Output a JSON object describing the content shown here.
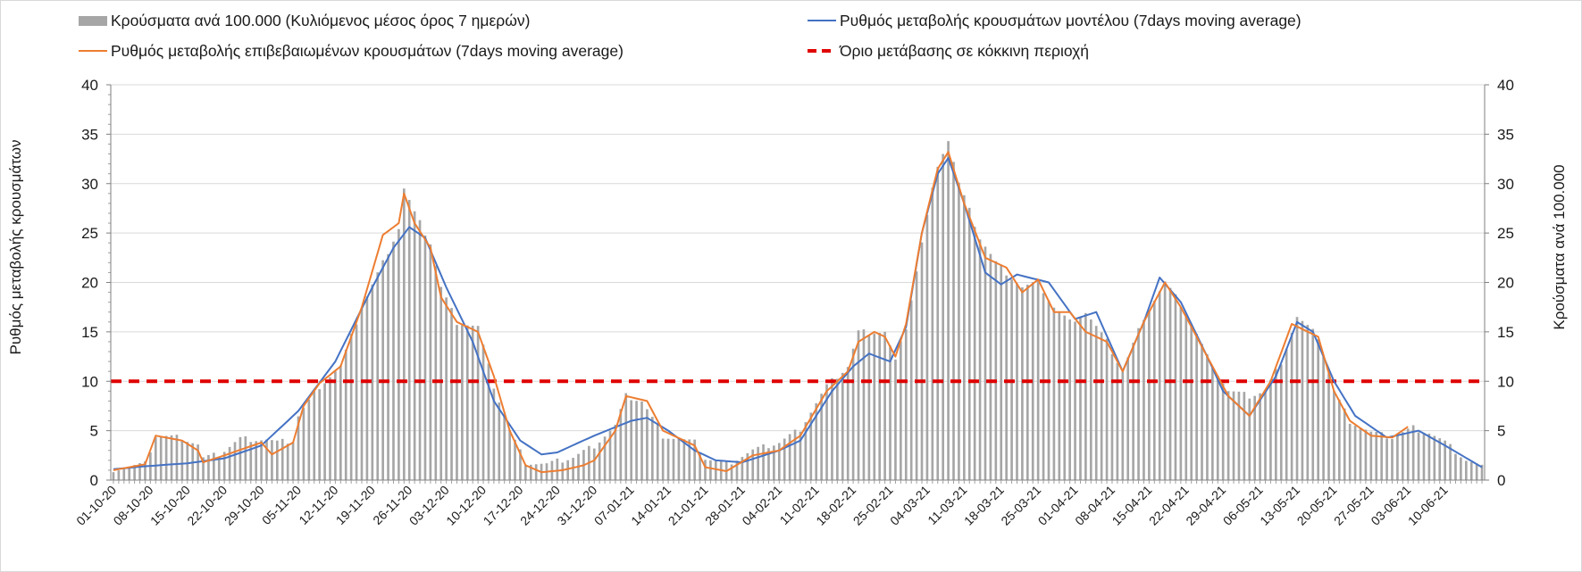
{
  "chart_data": {
    "type": "bar+line",
    "legend": {
      "placement": "top",
      "entries": [
        {
          "label": "Κρούσματα ανά 100.000 (Κυλιόμενος μέσος όρος 7 ημερών)",
          "kind": "bar",
          "color": "#a6a6a6"
        },
        {
          "label": "Ρυθμός μεταβολής κρουσμάτων μοντέλου (7days moving average)",
          "kind": "line",
          "color": "#4472c4"
        },
        {
          "label": "Ρυθμός μεταβολής επιβεβαιωμένων κρουσμάτων (7days moving average)",
          "kind": "line",
          "color": "#ed7d31"
        },
        {
          "label": "Όριο μετάβασης σε κόκκινη περιοχή",
          "kind": "dashed-line",
          "color": "#e00000"
        }
      ]
    },
    "ylabel_left": "Ρυθμός μεταβολής κρουσμάτων",
    "ylabel_right": "Κρούσματα ανά 100.000",
    "ylim": [
      0,
      40
    ],
    "yticks": [
      "0",
      "5",
      "10",
      "15",
      "20",
      "25",
      "30",
      "35",
      "40"
    ],
    "grid": "horizontal",
    "x_start": "2020-10-01",
    "x_end": "2021-06-17",
    "x_tick_labels": [
      "01-10-20",
      "08-10-20",
      "15-10-20",
      "22-10-20",
      "29-10-20",
      "05-11-20",
      "12-11-20",
      "19-11-20",
      "26-11-20",
      "03-12-20",
      "10-12-20",
      "17-12-20",
      "24-12-20",
      "31-12-20",
      "07-01-21",
      "14-01-21",
      "21-01-21",
      "28-01-21",
      "04-02-21",
      "11-02-21",
      "18-02-21",
      "25-02-21",
      "04-03-21",
      "11-03-21",
      "18-03-21",
      "25-03-21",
      "01-04-21",
      "08-04-21",
      "15-04-21",
      "22-04-21",
      "29-04-21",
      "06-05-21",
      "13-05-21",
      "20-05-21",
      "27-05-21",
      "03-06-21",
      "10-06-21"
    ],
    "threshold": 10,
    "series": [
      {
        "name": "Κρούσματα ανά 100.000 (Κυλιόμενος μέσος όρος 7 ημερών)",
        "kind": "bar",
        "color": "#a6a6a6",
        "knots": [
          [
            "2020-10-01",
            1.1
          ],
          [
            "2020-10-07",
            1.6
          ],
          [
            "2020-10-09",
            4.5
          ],
          [
            "2020-10-14",
            4.3
          ],
          [
            "2020-10-17",
            3.6
          ],
          [
            "2020-10-18",
            2.2
          ],
          [
            "2020-10-21",
            2.6
          ],
          [
            "2020-10-25",
            4.2
          ],
          [
            "2020-10-30",
            4.1
          ],
          [
            "2020-11-01",
            3.8
          ],
          [
            "2020-11-04",
            4.0
          ],
          [
            "2020-11-05",
            6.5
          ],
          [
            "2020-11-09",
            9.5
          ],
          [
            "2020-11-13",
            11.5
          ],
          [
            "2020-11-17",
            17.5
          ],
          [
            "2020-11-21",
            22.0
          ],
          [
            "2020-11-24",
            25.5
          ],
          [
            "2020-11-25",
            29.5
          ],
          [
            "2020-11-27",
            27.0
          ],
          [
            "2020-11-30",
            24.0
          ],
          [
            "2020-12-02",
            19.5
          ],
          [
            "2020-12-05",
            16.0
          ],
          [
            "2020-12-09",
            15.5
          ],
          [
            "2020-12-12",
            9.5
          ],
          [
            "2020-12-15",
            5.0
          ],
          [
            "2020-12-18",
            1.8
          ],
          [
            "2020-12-22",
            1.6
          ],
          [
            "2020-12-27",
            2.3
          ],
          [
            "2020-12-31",
            3.5
          ],
          [
            "2021-01-04",
            5.5
          ],
          [
            "2021-01-06",
            8.5
          ],
          [
            "2021-01-09",
            8.0
          ],
          [
            "2021-01-13",
            4.5
          ],
          [
            "2021-01-19",
            3.8
          ],
          [
            "2021-01-21",
            2.2
          ],
          [
            "2021-01-25",
            1.6
          ],
          [
            "2021-01-30",
            3.0
          ],
          [
            "2021-02-04",
            3.8
          ],
          [
            "2021-02-08",
            5.2
          ],
          [
            "2021-02-13",
            9.5
          ],
          [
            "2021-02-17",
            11.5
          ],
          [
            "2021-02-19",
            15.0
          ],
          [
            "2021-02-24",
            15.0
          ],
          [
            "2021-02-26",
            12.0
          ],
          [
            "2021-02-28",
            15.5
          ],
          [
            "2021-03-03",
            24.0
          ],
          [
            "2021-03-06",
            32.0
          ],
          [
            "2021-03-08",
            34.4
          ],
          [
            "2021-03-10",
            30.0
          ],
          [
            "2021-03-14",
            24.5
          ],
          [
            "2021-03-17",
            22.0
          ],
          [
            "2021-03-19",
            21.0
          ],
          [
            "2021-03-22",
            19.5
          ],
          [
            "2021-03-25",
            20.0
          ],
          [
            "2021-03-28",
            17.5
          ],
          [
            "2021-03-31",
            16.0
          ],
          [
            "2021-04-03",
            17.0
          ],
          [
            "2021-04-07",
            14.0
          ],
          [
            "2021-04-10",
            11.0
          ],
          [
            "2021-04-14",
            16.5
          ],
          [
            "2021-04-18",
            20.0
          ],
          [
            "2021-04-22",
            17.0
          ],
          [
            "2021-04-26",
            12.5
          ],
          [
            "2021-04-30",
            9.0
          ],
          [
            "2021-05-04",
            8.5
          ],
          [
            "2021-05-07",
            9.0
          ],
          [
            "2021-05-10",
            12.0
          ],
          [
            "2021-05-13",
            16.5
          ],
          [
            "2021-05-17",
            14.5
          ],
          [
            "2021-05-20",
            9.0
          ],
          [
            "2021-05-23",
            6.0
          ],
          [
            "2021-05-27",
            4.8
          ],
          [
            "2021-05-31",
            4.3
          ],
          [
            "2021-06-04",
            5.3
          ],
          [
            "2021-06-07",
            4.8
          ],
          [
            "2021-06-10",
            3.8
          ],
          [
            "2021-06-14",
            2.0
          ],
          [
            "2021-06-17",
            1.3
          ]
        ]
      },
      {
        "name": "Ρυθμός μεταβολής κρουσμάτων μοντέλου (7days moving average)",
        "kind": "line",
        "color": "#4472c4",
        "knots": [
          [
            "2020-10-01",
            1.1
          ],
          [
            "2020-10-07",
            1.4
          ],
          [
            "2020-10-15",
            1.7
          ],
          [
            "2020-10-22",
            2.2
          ],
          [
            "2020-10-29",
            3.5
          ],
          [
            "2020-11-05",
            7.0
          ],
          [
            "2020-11-12",
            12.0
          ],
          [
            "2020-11-19",
            19.5
          ],
          [
            "2020-11-23",
            23.5
          ],
          [
            "2020-11-26",
            25.6
          ],
          [
            "2020-11-29",
            24.5
          ],
          [
            "2020-12-03",
            19.5
          ],
          [
            "2020-12-08",
            14.0
          ],
          [
            "2020-12-12",
            8.0
          ],
          [
            "2020-12-17",
            4.0
          ],
          [
            "2020-12-21",
            2.6
          ],
          [
            "2020-12-24",
            2.8
          ],
          [
            "2020-12-31",
            4.5
          ],
          [
            "2021-01-07",
            6.0
          ],
          [
            "2021-01-10",
            6.3
          ],
          [
            "2021-01-14",
            5.0
          ],
          [
            "2021-01-19",
            3.0
          ],
          [
            "2021-01-23",
            2.0
          ],
          [
            "2021-01-28",
            1.8
          ],
          [
            "2021-02-04",
            3.0
          ],
          [
            "2021-02-08",
            4.0
          ],
          [
            "2021-02-14",
            9.0
          ],
          [
            "2021-02-18",
            11.5
          ],
          [
            "2021-02-21",
            12.8
          ],
          [
            "2021-02-25",
            12.0
          ],
          [
            "2021-02-28",
            15.5
          ],
          [
            "2021-03-03",
            25.0
          ],
          [
            "2021-03-06",
            31.0
          ],
          [
            "2021-03-08",
            32.6
          ],
          [
            "2021-03-11",
            28.0
          ],
          [
            "2021-03-15",
            21.0
          ],
          [
            "2021-03-18",
            19.8
          ],
          [
            "2021-03-21",
            20.8
          ],
          [
            "2021-03-27",
            20.0
          ],
          [
            "2021-04-01",
            16.3
          ],
          [
            "2021-04-05",
            17.0
          ],
          [
            "2021-04-10",
            11.0
          ],
          [
            "2021-04-14",
            16.0
          ],
          [
            "2021-04-17",
            20.5
          ],
          [
            "2021-04-21",
            18.0
          ],
          [
            "2021-04-26",
            12.5
          ],
          [
            "2021-04-29",
            9.0
          ],
          [
            "2021-05-04",
            6.5
          ],
          [
            "2021-05-09",
            10.5
          ],
          [
            "2021-05-13",
            16.0
          ],
          [
            "2021-05-16",
            15.0
          ],
          [
            "2021-05-20",
            10.0
          ],
          [
            "2021-05-24",
            6.5
          ],
          [
            "2021-05-30",
            4.3
          ],
          [
            "2021-06-05",
            5.0
          ],
          [
            "2021-06-10",
            3.5
          ],
          [
            "2021-06-17",
            1.3
          ]
        ]
      },
      {
        "name": "Ρυθμός μεταβολής επιβεβαιωμένων κρουσμάτων (7days moving average)",
        "kind": "line",
        "color": "#ed7d31",
        "knots": [
          [
            "2020-10-01",
            1.0
          ],
          [
            "2020-10-07",
            1.6
          ],
          [
            "2020-10-09",
            4.5
          ],
          [
            "2020-10-14",
            4.0
          ],
          [
            "2020-10-17",
            3.0
          ],
          [
            "2020-10-18",
            1.8
          ],
          [
            "2020-10-22",
            2.5
          ],
          [
            "2020-10-29",
            3.8
          ],
          [
            "2020-10-31",
            2.6
          ],
          [
            "2020-11-04",
            3.8
          ],
          [
            "2020-11-06",
            7.5
          ],
          [
            "2020-11-09",
            9.8
          ],
          [
            "2020-11-13",
            11.5
          ],
          [
            "2020-11-17",
            17.5
          ],
          [
            "2020-11-21",
            24.8
          ],
          [
            "2020-11-24",
            26.0
          ],
          [
            "2020-11-25",
            29.0
          ],
          [
            "2020-11-27",
            26.0
          ],
          [
            "2020-11-30",
            23.5
          ],
          [
            "2020-12-02",
            18.5
          ],
          [
            "2020-12-05",
            16.0
          ],
          [
            "2020-12-09",
            15.0
          ],
          [
            "2020-12-12",
            10.5
          ],
          [
            "2020-12-15",
            5.0
          ],
          [
            "2020-12-18",
            1.5
          ],
          [
            "2020-12-21",
            0.8
          ],
          [
            "2020-12-25",
            1.0
          ],
          [
            "2020-12-29",
            1.5
          ],
          [
            "2020-12-31",
            2.0
          ],
          [
            "2021-01-04",
            5.0
          ],
          [
            "2021-01-06",
            8.5
          ],
          [
            "2021-01-10",
            8.0
          ],
          [
            "2021-01-13",
            5.0
          ],
          [
            "2021-01-19",
            3.5
          ],
          [
            "2021-01-21",
            1.3
          ],
          [
            "2021-01-25",
            0.9
          ],
          [
            "2021-01-30",
            2.5
          ],
          [
            "2021-02-04",
            3.0
          ],
          [
            "2021-02-08",
            4.5
          ],
          [
            "2021-02-13",
            9.0
          ],
          [
            "2021-02-17",
            11.0
          ],
          [
            "2021-02-19",
            14.0
          ],
          [
            "2021-02-22",
            15.0
          ],
          [
            "2021-02-24",
            14.5
          ],
          [
            "2021-02-26",
            12.5
          ],
          [
            "2021-02-28",
            15.8
          ],
          [
            "2021-03-03",
            25.0
          ],
          [
            "2021-03-06",
            31.5
          ],
          [
            "2021-03-08",
            33.2
          ],
          [
            "2021-03-11",
            28.0
          ],
          [
            "2021-03-15",
            22.5
          ],
          [
            "2021-03-19",
            21.5
          ],
          [
            "2021-03-22",
            19.0
          ],
          [
            "2021-03-25",
            20.3
          ],
          [
            "2021-03-28",
            17.0
          ],
          [
            "2021-03-31",
            17.0
          ],
          [
            "2021-04-03",
            15.0
          ],
          [
            "2021-04-07",
            14.0
          ],
          [
            "2021-04-10",
            11.0
          ],
          [
            "2021-04-14",
            16.0
          ],
          [
            "2021-04-18",
            20.0
          ],
          [
            "2021-04-21",
            17.5
          ],
          [
            "2021-04-26",
            12.5
          ],
          [
            "2021-04-30",
            8.5
          ],
          [
            "2021-05-04",
            6.5
          ],
          [
            "2021-05-08",
            10.0
          ],
          [
            "2021-05-12",
            15.8
          ],
          [
            "2021-05-17",
            14.5
          ],
          [
            "2021-05-20",
            9.0
          ],
          [
            "2021-05-23",
            6.0
          ],
          [
            "2021-05-27",
            4.5
          ],
          [
            "2021-05-31",
            4.3
          ],
          [
            "2021-06-03",
            5.4
          ]
        ]
      }
    ]
  }
}
